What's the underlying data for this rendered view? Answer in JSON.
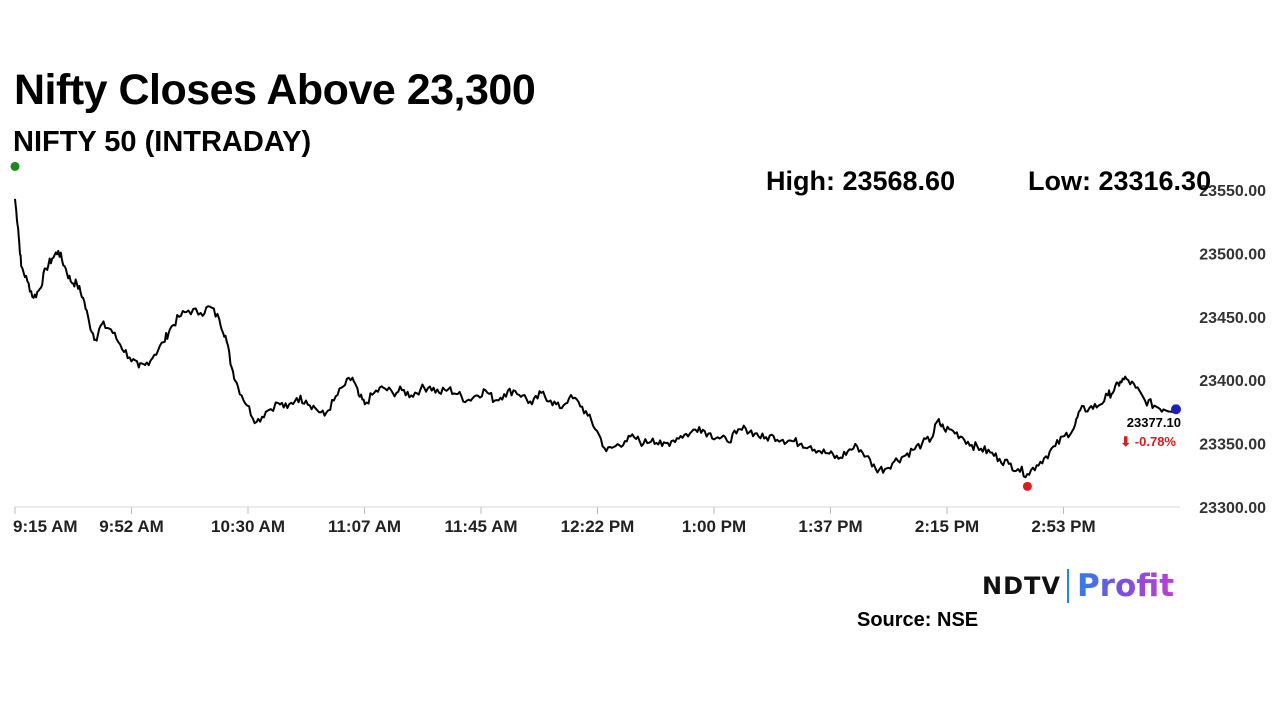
{
  "header": {
    "title": "Nifty Closes Above 23,300",
    "subtitle": "NIFTY 50 (INTRADAY)",
    "high_label": "High: 23568.60",
    "low_label": "Low: 23316.30"
  },
  "last_value_label": "23377.10",
  "change_label": "⬇ -0.78%",
  "source_label": "Source: NSE",
  "logo": {
    "brand": "NDTV",
    "product": "Profit"
  },
  "colors": {
    "line": "#000000",
    "high_marker": "#1a8a1a",
    "low_marker": "#e01b1b",
    "last_marker": "#1f1fbf",
    "negative": "#e01b1b"
  },
  "chart_data": {
    "type": "line",
    "title": "NIFTY 50 (INTRADAY)",
    "xlabel": "",
    "ylabel": "",
    "x_tick_labels": [
      "9:15 AM",
      "9:52 AM",
      "10:30 AM",
      "11:07 AM",
      "11:45 AM",
      "12:22 PM",
      "1:00 PM",
      "1:37 PM",
      "2:15 PM",
      "2:53 PM"
    ],
    "y_tick_values": [
      23300,
      23350,
      23400,
      23450,
      23500,
      23550
    ],
    "y_tick_labels": [
      "23300.00",
      "23350.00",
      "23400.00",
      "23450.00",
      "23500.00",
      "23550.00"
    ],
    "ylim": [
      23300,
      23550
    ],
    "xlim_minutes": [
      0,
      375
    ],
    "grid": false,
    "legend": "none",
    "high": 23568.6,
    "low": 23316.3,
    "last": 23377.1,
    "change_pct": -0.78,
    "series": [
      {
        "points": [
          [
            0,
            23543
          ],
          [
            1,
            23520
          ],
          [
            2,
            23490
          ],
          [
            4,
            23478
          ],
          [
            6,
            23465
          ],
          [
            8,
            23472
          ],
          [
            10,
            23488
          ],
          [
            12,
            23496
          ],
          [
            14,
            23502
          ],
          [
            16,
            23490
          ],
          [
            18,
            23478
          ],
          [
            20,
            23476
          ],
          [
            22,
            23465
          ],
          [
            24,
            23445
          ],
          [
            26,
            23432
          ],
          [
            28,
            23444
          ],
          [
            31,
            23440
          ],
          [
            34,
            23428
          ],
          [
            37,
            23418
          ],
          [
            40,
            23410
          ],
          [
            42,
            23412
          ],
          [
            45,
            23420
          ],
          [
            48,
            23430
          ],
          [
            50,
            23440
          ],
          [
            53,
            23450
          ],
          [
            56,
            23455
          ],
          [
            60,
            23453
          ],
          [
            63,
            23458
          ],
          [
            66,
            23448
          ],
          [
            68,
            23435
          ],
          [
            70,
            23410
          ],
          [
            72,
            23395
          ],
          [
            75,
            23380
          ],
          [
            78,
            23367
          ],
          [
            81,
            23375
          ],
          [
            85,
            23382
          ],
          [
            88,
            23378
          ],
          [
            91,
            23386
          ],
          [
            94,
            23384
          ],
          [
            97,
            23378
          ],
          [
            100,
            23372
          ],
          [
            103,
            23384
          ],
          [
            106,
            23395
          ],
          [
            109,
            23402
          ],
          [
            111,
            23388
          ],
          [
            113,
            23381
          ],
          [
            116,
            23390
          ],
          [
            119,
            23394
          ],
          [
            122,
            23390
          ],
          [
            125,
            23392
          ],
          [
            128,
            23388
          ],
          [
            131,
            23393
          ],
          [
            134,
            23395
          ],
          [
            137,
            23390
          ],
          [
            140,
            23393
          ],
          [
            143,
            23389
          ],
          [
            146,
            23384
          ],
          [
            149,
            23388
          ],
          [
            152,
            23392
          ],
          [
            155,
            23384
          ],
          [
            158,
            23389
          ],
          [
            161,
            23392
          ],
          [
            164,
            23388
          ],
          [
            167,
            23381
          ],
          [
            170,
            23390
          ],
          [
            173,
            23384
          ],
          [
            176,
            23378
          ],
          [
            179,
            23386
          ],
          [
            182,
            23383
          ],
          [
            185,
            23372
          ],
          [
            188,
            23360
          ],
          [
            191,
            23344
          ],
          [
            194,
            23348
          ],
          [
            197,
            23352
          ],
          [
            200,
            23355
          ],
          [
            203,
            23350
          ],
          [
            206,
            23354
          ],
          [
            209,
            23348
          ],
          [
            212,
            23352
          ],
          [
            215,
            23356
          ],
          [
            218,
            23358
          ],
          [
            221,
            23363
          ],
          [
            224,
            23358
          ],
          [
            227,
            23355
          ],
          [
            230,
            23352
          ],
          [
            233,
            23358
          ],
          [
            236,
            23362
          ],
          [
            239,
            23358
          ],
          [
            242,
            23354
          ],
          [
            245,
            23356
          ],
          [
            248,
            23353
          ],
          [
            251,
            23352
          ],
          [
            254,
            23350
          ],
          [
            257,
            23348
          ],
          [
            260,
            23344
          ],
          [
            263,
            23342
          ],
          [
            266,
            23338
          ],
          [
            269,
            23344
          ],
          [
            272,
            23348
          ],
          [
            275,
            23340
          ],
          [
            278,
            23330
          ],
          [
            281,
            23330
          ],
          [
            284,
            23336
          ],
          [
            287,
            23340
          ],
          [
            290,
            23345
          ],
          [
            293,
            23350
          ],
          [
            296,
            23354
          ],
          [
            298,
            23368
          ],
          [
            300,
            23362
          ],
          [
            303,
            23360
          ],
          [
            306,
            23355
          ],
          [
            309,
            23349
          ],
          [
            312,
            23346
          ],
          [
            315,
            23343
          ],
          [
            318,
            23338
          ],
          [
            321,
            23334
          ],
          [
            324,
            23330
          ],
          [
            327,
            23326
          ],
          [
            330,
            23333
          ],
          [
            333,
            23340
          ],
          [
            336,
            23348
          ],
          [
            339,
            23356
          ],
          [
            342,
            23362
          ],
          [
            344,
            23376
          ],
          [
            347,
            23378
          ],
          [
            350,
            23380
          ],
          [
            353,
            23388
          ],
          [
            355,
            23392
          ],
          [
            357,
            23399
          ],
          [
            359,
            23401
          ],
          [
            362,
            23394
          ],
          [
            365,
            23384
          ],
          [
            368,
            23380
          ],
          [
            371,
            23377
          ],
          [
            375,
            23377.1
          ]
        ]
      }
    ]
  }
}
